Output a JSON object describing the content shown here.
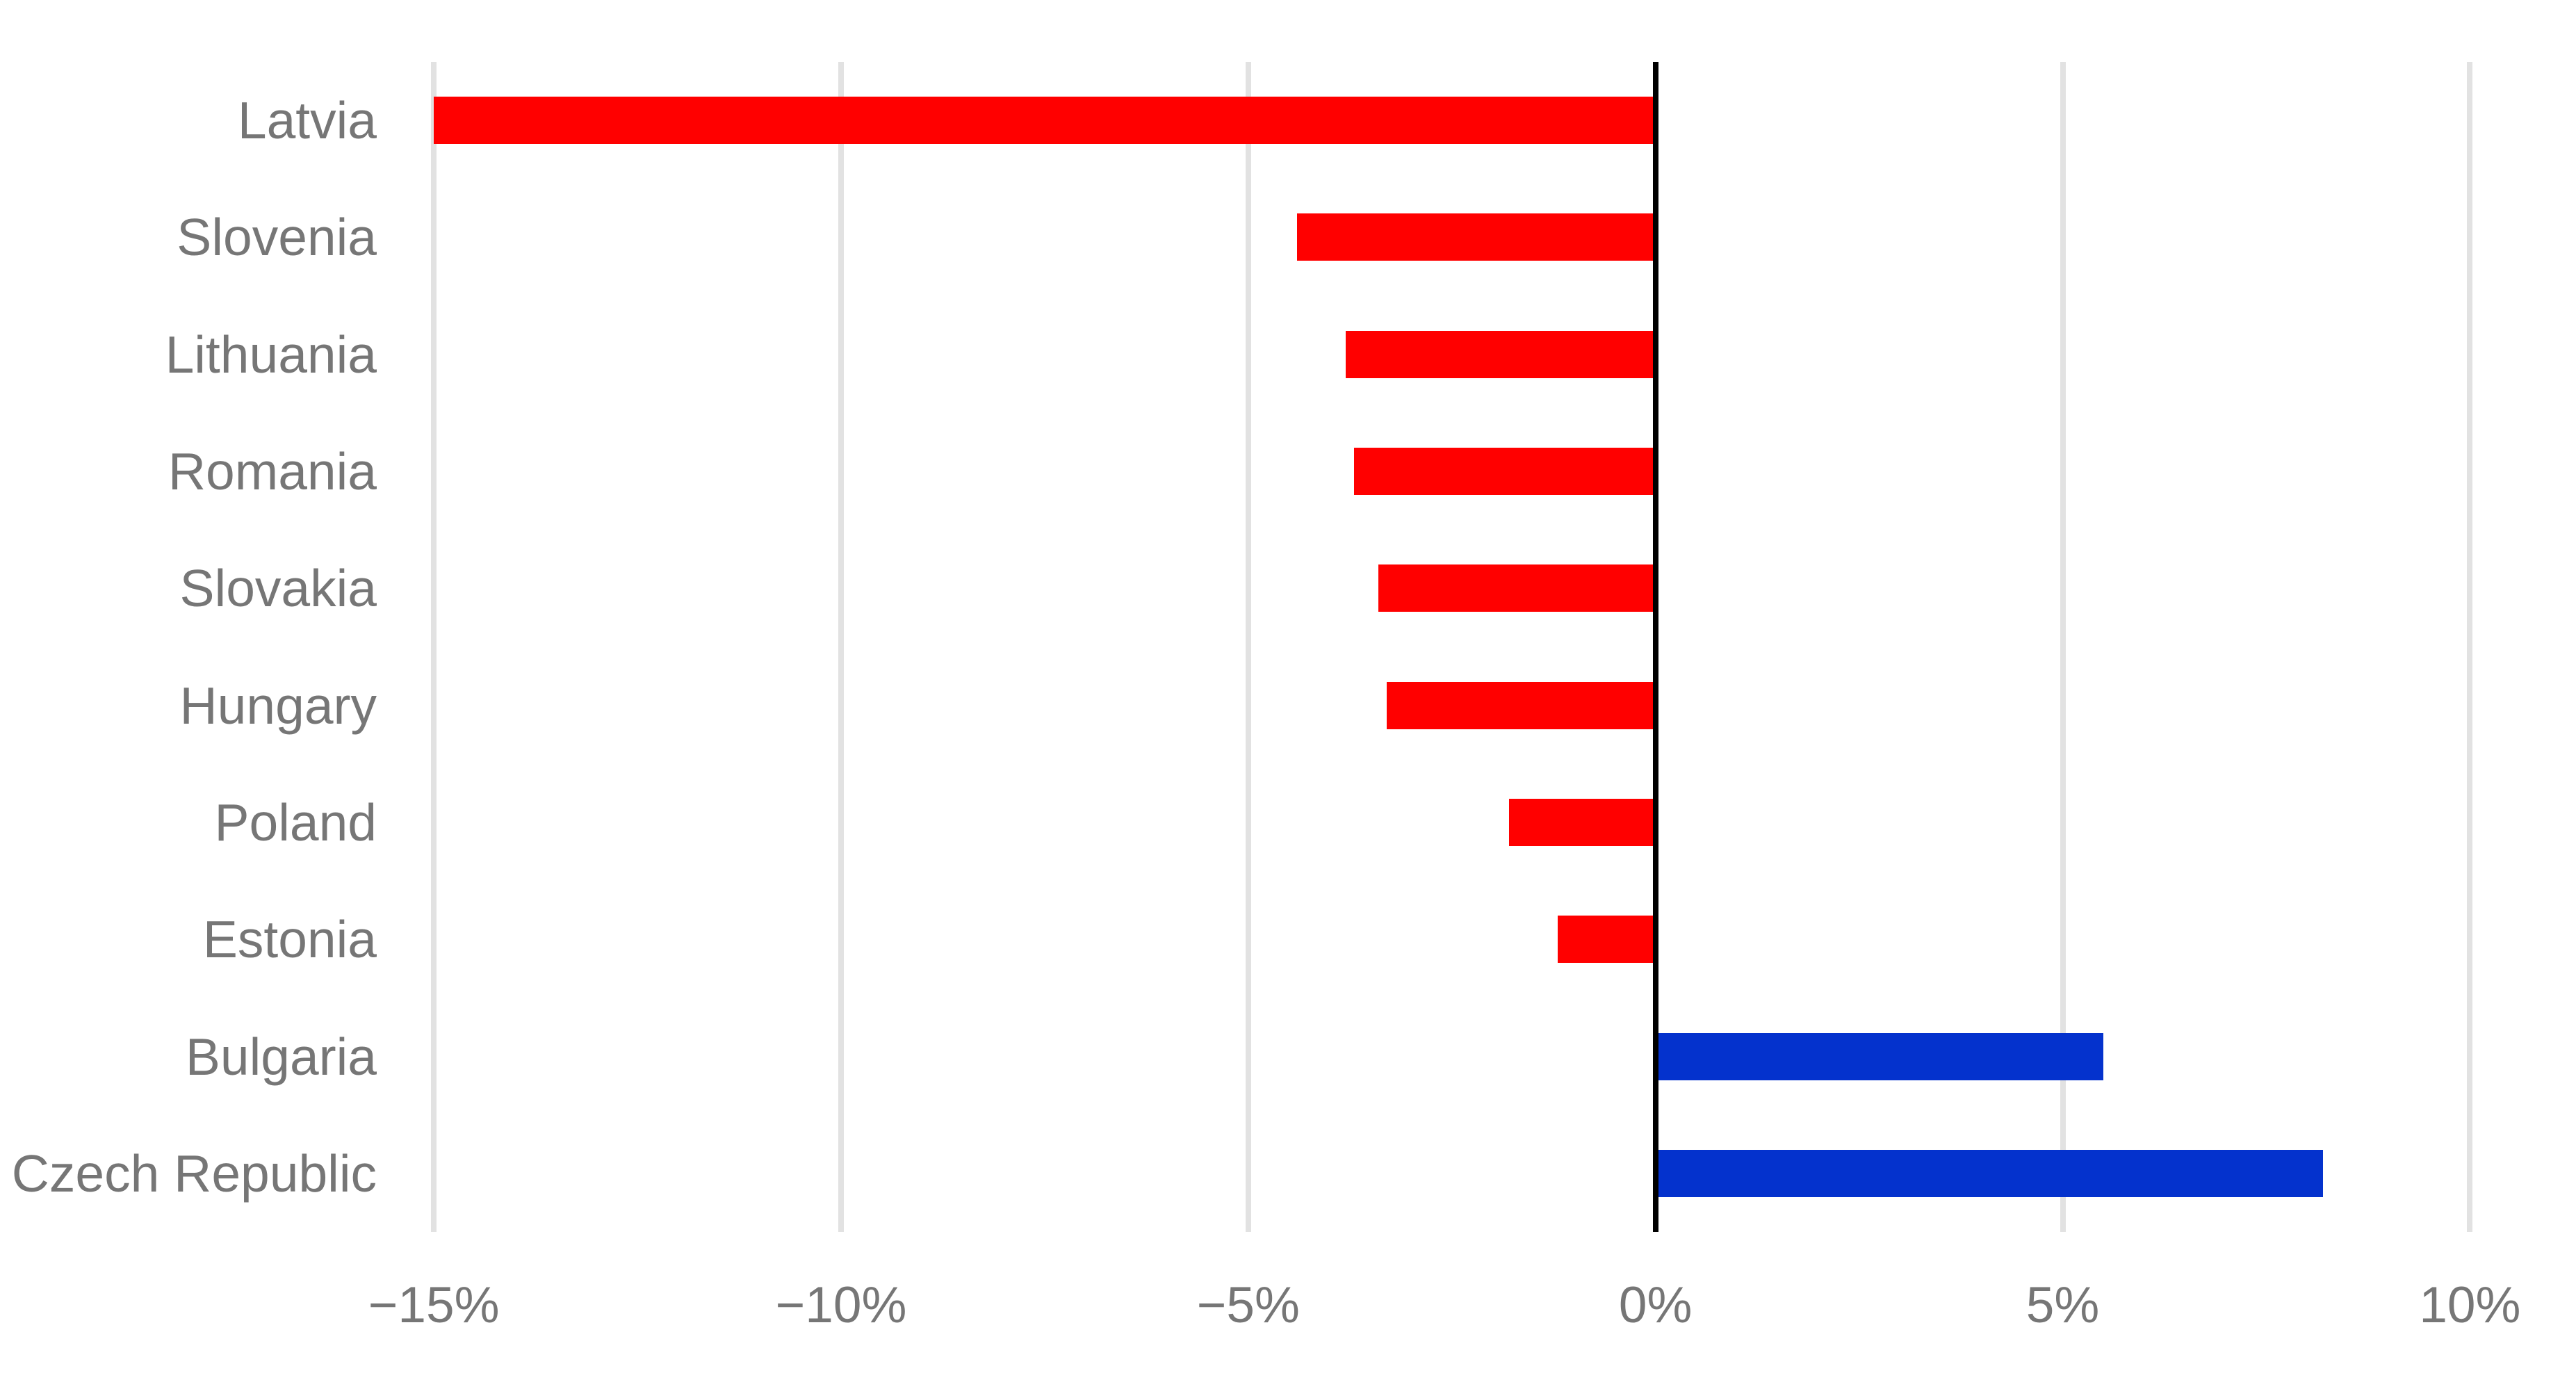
{
  "chart_data": {
    "type": "bar",
    "orientation": "horizontal",
    "title": "",
    "xlabel": "",
    "ylabel": "",
    "xlim": [
      -15,
      10
    ],
    "grid": true,
    "legend": false,
    "categories": [
      "Latvia",
      "Slovenia",
      "Lithuania",
      "Romania",
      "Slovakia",
      "Hungary",
      "Poland",
      "Estonia",
      "Bulgaria",
      "Czech Republic"
    ],
    "values": [
      -15.0,
      -4.4,
      -3.8,
      -3.7,
      -3.4,
      -3.3,
      -1.8,
      -1.2,
      5.5,
      8.2
    ],
    "x_ticks": [
      {
        "value": -15,
        "label": "−15%"
      },
      {
        "value": -10,
        "label": "−10%"
      },
      {
        "value": -5,
        "label": "−5%"
      },
      {
        "value": 0,
        "label": "0%"
      },
      {
        "value": 5,
        "label": "5%"
      },
      {
        "value": 10,
        "label": "10%"
      }
    ],
    "colors": {
      "negative_bar": "#ff0000",
      "positive_bar": "#0432cd",
      "gridline": "#e2e2e2",
      "zero_axis": "#000000",
      "label_text": "#767676",
      "background": "#ffffff"
    }
  }
}
